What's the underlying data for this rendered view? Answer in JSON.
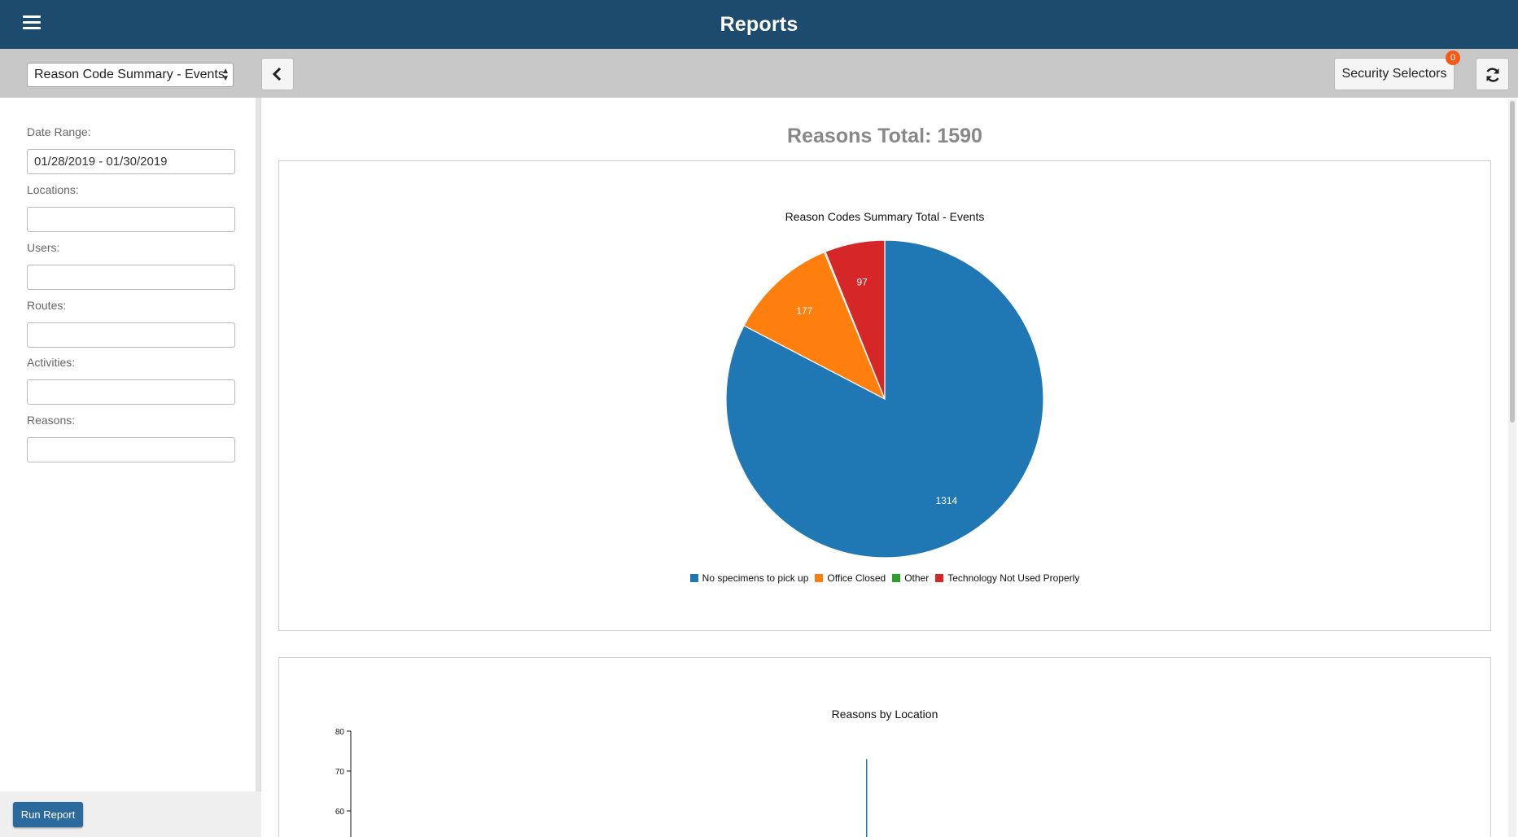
{
  "header": {
    "title": "Reports"
  },
  "toolbar": {
    "report_select_value": "Reason Code Summary - Events",
    "security_selectors_label": "Security Selectors",
    "security_selectors_count": "0"
  },
  "sidebar": {
    "date_range_label": "Date Range:",
    "date_range_value": "01/28/2019 - 01/30/2019",
    "locations_label": "Locations:",
    "users_label": "Users:",
    "routes_label": "Routes:",
    "activities_label": "Activities:",
    "reasons_label": "Reasons:",
    "run_report_label": "Run Report"
  },
  "main": {
    "total_heading": "Reasons Total: 1590"
  },
  "colors": {
    "blue": "#1f77b4",
    "orange": "#ff7f0e",
    "green": "#2ca02c",
    "red": "#d62728"
  },
  "chart_data": [
    {
      "type": "pie",
      "title": "Reason Codes Summary Total - Events",
      "categories": [
        "No specimens to pick up",
        "Office Closed",
        "Other",
        "Technology Not Used Properly"
      ],
      "values": [
        1314,
        177,
        2,
        97
      ],
      "colors": [
        "#1f77b4",
        "#ff7f0e",
        "#2ca02c",
        "#d62728"
      ],
      "legend_position": "bottom"
    },
    {
      "type": "bar",
      "title": "Reasons by Location",
      "ylim": [
        0,
        80
      ],
      "yticks": [
        80,
        70,
        60
      ],
      "visible_bar_value": 73
    }
  ]
}
